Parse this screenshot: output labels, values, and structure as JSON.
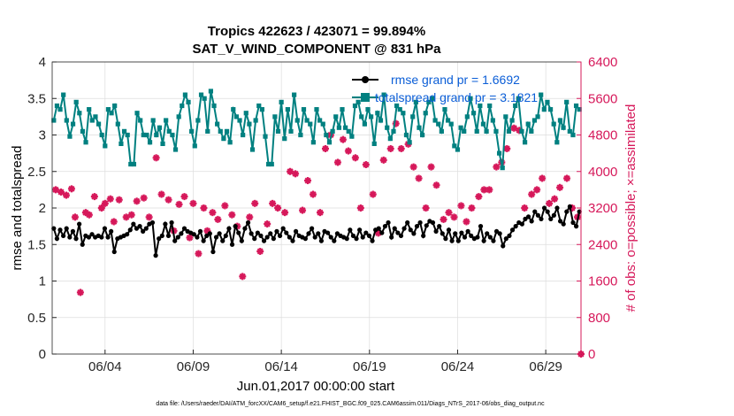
{
  "chart_data": {
    "type": "line",
    "title_line1": "Tropics 422623 / 423071 = 99.894%",
    "title_line2": "SAT_V_WIND_COMPONENT @ 831 hPa",
    "xlabel": "Jun.01,2017 00:00:00 start",
    "ylabel_left": "rmse and totalspread",
    "ylabel_right": "# of obs: o=possible; ×=assimilated",
    "footnote": "data file: /Users/raeder/DAI/ATM_forcXX/CAM6_setup/f.e21.FHIST_BGC.f09_025.CAM6assim.011/Diags_NTrS_2017-06/obs_diag_output.nc",
    "xlim": [
      0,
      30
    ],
    "x_ticks": [
      3,
      8,
      13,
      18,
      23,
      28
    ],
    "x_tick_labels": [
      "06/04",
      "06/09",
      "06/14",
      "06/19",
      "06/24",
      "06/29"
    ],
    "ylim_left": [
      0,
      4
    ],
    "y_ticks_left": [
      "0",
      "0.5",
      "1",
      "1.5",
      "2",
      "2.5",
      "3",
      "3.5",
      "4"
    ],
    "ylim_right": [
      0,
      6400
    ],
    "y_ticks_right": [
      "0",
      "800",
      "1600",
      "2400",
      "3200",
      "4000",
      "4800",
      "5600",
      "6400"
    ],
    "colors": {
      "rmse": "#000000",
      "spread": "#008080",
      "obs": "#d6185a",
      "legend_text": "#0b5ed7",
      "grid": "#dddddd"
    },
    "series": [
      {
        "name": "rmse grand pr = 1.6692",
        "axis": "left",
        "color": "#000000",
        "values": [
          1.72,
          1.58,
          1.7,
          1.62,
          1.72,
          1.6,
          1.68,
          1.58,
          1.78,
          1.5,
          1.62,
          1.6,
          1.64,
          1.6,
          1.62,
          1.6,
          1.72,
          1.6,
          1.68,
          1.4,
          1.58,
          1.6,
          1.62,
          1.64,
          1.7,
          1.78,
          1.72,
          1.75,
          1.68,
          1.72,
          1.78,
          1.8,
          1.35,
          1.58,
          1.62,
          1.78,
          1.62,
          1.8,
          1.55,
          1.6,
          1.65,
          1.72,
          1.68,
          1.66,
          1.64,
          1.6,
          1.68,
          1.55,
          1.62,
          1.65,
          1.4,
          1.6,
          1.65,
          1.55,
          1.62,
          1.72,
          1.5,
          1.75,
          1.66,
          1.55,
          1.72,
          1.8,
          1.65,
          1.58,
          1.66,
          1.62,
          1.55,
          1.6,
          1.65,
          1.58,
          1.68,
          1.62,
          1.72,
          1.66,
          1.6,
          1.55,
          1.68,
          1.62,
          1.6,
          1.58,
          1.65,
          1.72,
          1.6,
          1.65,
          1.55,
          1.68,
          1.66,
          1.6,
          1.55,
          1.65,
          1.62,
          1.6,
          1.58,
          1.7,
          1.62,
          1.58,
          1.7,
          1.6,
          1.66,
          1.62,
          1.55,
          1.7,
          1.72,
          1.66,
          1.75,
          1.8,
          1.6,
          1.72,
          1.66,
          1.62,
          1.72,
          1.8,
          1.7,
          1.65,
          1.75,
          1.8,
          1.62,
          1.76,
          1.82,
          1.8,
          1.68,
          1.75,
          1.65,
          1.58,
          1.7,
          1.55,
          1.65,
          1.55,
          1.66,
          1.6,
          1.68,
          1.62,
          1.58,
          1.6,
          1.75,
          1.55,
          1.65,
          1.6,
          1.55,
          1.68,
          1.65,
          1.48,
          1.58,
          1.62,
          1.7,
          1.75,
          1.8,
          1.78,
          1.85,
          1.88,
          1.82,
          1.95,
          1.9,
          1.85,
          2.0,
          1.95,
          1.85,
          1.9,
          2.0,
          1.82,
          1.78,
          1.95,
          2.02,
          1.8,
          1.75,
          1.95
        ]
      },
      {
        "name": "totalspread grand pr = 3.1821",
        "axis": "left",
        "color": "#008080",
        "values": [
          3.2,
          3.4,
          3.35,
          3.55,
          3.2,
          2.98,
          3.15,
          3.45,
          3.3,
          3.05,
          2.9,
          3.35,
          3.2,
          3.25,
          3.15,
          3.0,
          2.85,
          3.35,
          3.3,
          3.4,
          3.15,
          2.88,
          3.05,
          3.0,
          2.6,
          2.6,
          3.3,
          3.2,
          3.0,
          3.0,
          2.9,
          3.2,
          3.0,
          3.1,
          2.88,
          3.2,
          3.05,
          3.0,
          2.8,
          3.25,
          3.4,
          3.55,
          3.45,
          3.05,
          2.85,
          3.2,
          3.55,
          3.5,
          3.05,
          3.6,
          3.4,
          3.15,
          3.05,
          2.95,
          3.05,
          2.9,
          3.35,
          3.25,
          3.2,
          3.0,
          3.3,
          3.15,
          2.8,
          3.2,
          3.4,
          3.35,
          2.98,
          2.6,
          2.6,
          3.25,
          3.05,
          3.45,
          2.95,
          3.35,
          3.05,
          3.55,
          3.2,
          3.0,
          3.35,
          3.2,
          3.15,
          2.9,
          3.35,
          3.2,
          3.15,
          3.0,
          2.9,
          3.05,
          3.25,
          3.1,
          3.35,
          3.1,
          3.05,
          2.98,
          3.4,
          3.45,
          3.25,
          3.15,
          3.35,
          3.25,
          2.88,
          3.3,
          3.2,
          3.55,
          3.1,
          2.95,
          3.05,
          3.4,
          3.35,
          3.3,
          3.0,
          2.9,
          3.25,
          3.45,
          3.1,
          3.0,
          3.3,
          3.45,
          3.5,
          3.2,
          3.15,
          3.05,
          3.35,
          3.2,
          3.15,
          2.85,
          2.8,
          3.1,
          3.05,
          3.25,
          3.5,
          3.3,
          3.05,
          3.4,
          3.15,
          3.05,
          3.4,
          3.2,
          3.05,
          2.75,
          2.55,
          3.25,
          3.05,
          3.2,
          3.4,
          3.5,
          3.05,
          2.9,
          3.15,
          3.05,
          3.2,
          3.25,
          3.55,
          3.35,
          3.45,
          3.35,
          3.15,
          2.9,
          3.2,
          3.1,
          3.45,
          3.05,
          3.0,
          3.4,
          3.35
        ]
      },
      {
        "name": "# of obs assimilated",
        "axis": "right",
        "color": "#d6185a",
        "x": [
          0.2,
          0.5,
          0.8,
          1.1,
          1.3,
          1.6,
          1.9,
          2.1,
          2.4,
          2.8,
          3.0,
          3.3,
          3.5,
          3.8,
          4.2,
          4.5,
          4.8,
          5.2,
          5.5,
          5.9,
          6.2,
          6.6,
          6.9,
          7.2,
          7.5,
          7.8,
          8.0,
          8.3,
          8.6,
          8.8,
          9.1,
          9.4,
          9.8,
          10.2,
          10.5,
          10.8,
          11.2,
          11.5,
          11.8,
          12.2,
          12.5,
          12.8,
          13.2,
          13.5,
          13.8,
          14.2,
          14.5,
          14.8,
          15.2,
          15.5,
          15.8,
          16.2,
          16.5,
          16.8,
          17.2,
          17.5,
          17.8,
          18.2,
          18.5,
          18.8,
          19.2,
          19.5,
          19.8,
          20.2,
          20.5,
          20.8,
          21.2,
          21.5,
          21.8,
          22.2,
          22.5,
          22.8,
          23.2,
          23.5,
          23.8,
          24.2,
          24.5,
          24.8,
          25.2,
          25.5,
          25.8,
          26.2,
          26.5,
          26.8,
          27.2,
          27.5,
          27.8,
          28.2,
          28.5,
          28.8,
          29.2,
          29.5,
          29.8,
          30.0
        ],
        "values": [
          3600,
          3550,
          3480,
          3620,
          3000,
          1350,
          3100,
          3050,
          3450,
          3200,
          3300,
          3400,
          2900,
          3380,
          3000,
          3050,
          3350,
          3420,
          3000,
          4300,
          3500,
          3380,
          2700,
          3280,
          3450,
          2550,
          3300,
          2200,
          3200,
          2700,
          3100,
          2950,
          3250,
          3050,
          2800,
          1700,
          3000,
          3300,
          2250,
          2850,
          3300,
          3200,
          3100,
          4000,
          3950,
          3150,
          3800,
          3500,
          3100,
          4500,
          4800,
          4200,
          4700,
          4450,
          4300,
          3200,
          4150,
          3500,
          2650,
          4250,
          4500,
          5050,
          4500,
          4600,
          4100,
          3850,
          3200,
          4100,
          3700,
          2950,
          3100,
          3000,
          3250,
          2900,
          3200,
          3450,
          3600,
          3600,
          4100,
          4200,
          4500,
          4950,
          4900,
          3200,
          3500,
          3600,
          3850,
          3300,
          3400,
          3650,
          3850,
          3200,
          3000,
          0
        ]
      }
    ]
  }
}
